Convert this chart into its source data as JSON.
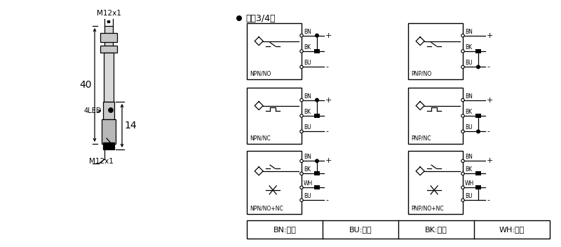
{
  "bg_color": "#ffffff",
  "line_color": "#000000",
  "gray_fill": "#d8d8d8",
  "title_text": "直涁3/4线",
  "legend_items": [
    "BN:棕色",
    "BU:兰色",
    "BK:黑色",
    "WH:白色"
  ],
  "diagrams": [
    {
      "label": "NPN/NO",
      "type": "NO",
      "side": "NPN"
    },
    {
      "label": "PNP/NO",
      "type": "NO",
      "side": "PNP"
    },
    {
      "label": "NPN/NC",
      "type": "NC",
      "side": "NPN"
    },
    {
      "label": "PNP/NC",
      "type": "NC",
      "side": "PNP"
    },
    {
      "label": "NPN/NO+NC",
      "type": "NONC",
      "side": "NPN"
    },
    {
      "label": "PNP/NO+NC",
      "type": "NONC",
      "side": "PNP"
    }
  ]
}
